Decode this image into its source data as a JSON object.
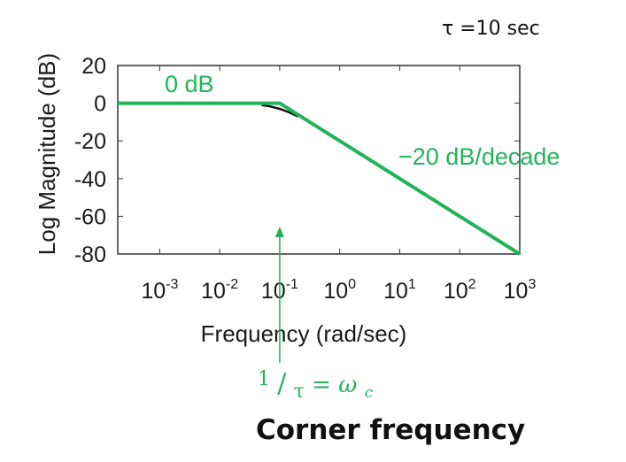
{
  "chart_data": {
    "type": "line",
    "title": "",
    "xlabel": "Frequency (rad/sec)",
    "ylabel": "Log Magnitude (dB)",
    "x_scale": "log",
    "xlim": [
      0.0002,
      1000
    ],
    "ylim": [
      -80,
      20
    ],
    "x_ticks": [
      {
        "base": "10",
        "exp": "-3",
        "value": 0.001
      },
      {
        "base": "10",
        "exp": "-2",
        "value": 0.01
      },
      {
        "base": "10",
        "exp": "-1",
        "value": 0.1
      },
      {
        "base": "10",
        "exp": "0",
        "value": 1
      },
      {
        "base": "10",
        "exp": "1",
        "value": 10
      },
      {
        "base": "10",
        "exp": "2",
        "value": 100
      },
      {
        "base": "10",
        "exp": "3",
        "value": 1000
      }
    ],
    "y_ticks": [
      {
        "label": "20",
        "value": 20
      },
      {
        "label": "0",
        "value": 0
      },
      {
        "label": "-20",
        "value": -20
      },
      {
        "label": "-40",
        "value": -40
      },
      {
        "label": "-60",
        "value": -60
      },
      {
        "label": "-80",
        "value": -80
      }
    ],
    "grid": false,
    "series": [
      {
        "color": "#22b35a",
        "points": [
          [
            0.0002,
            0
          ],
          [
            0.1,
            0
          ],
          [
            1000,
            -80
          ]
        ]
      },
      {
        "color": "#111111",
        "points": [
          [
            0.05,
            -0.97
          ],
          [
            0.07,
            -1.74
          ],
          [
            0.1,
            -3.01
          ],
          [
            0.14,
            -4.68
          ],
          [
            0.2,
            -6.99
          ]
        ]
      }
    ],
    "annotations": {
      "flat_label": "0 dB",
      "slope_label": "−20 dB/decade",
      "arrow_x": 0.1
    }
  },
  "tau_label": "τ =10 sec",
  "corner_formula": {
    "numerator": "1",
    "slash": "/",
    "denominator": "τ",
    "equals": " = ",
    "omega": "ω",
    "subscript": "c"
  },
  "corner_label": "Corner frequency",
  "colors": {
    "accent": "#22b35a",
    "arrow": "#22b35a",
    "text": "#111111"
  }
}
